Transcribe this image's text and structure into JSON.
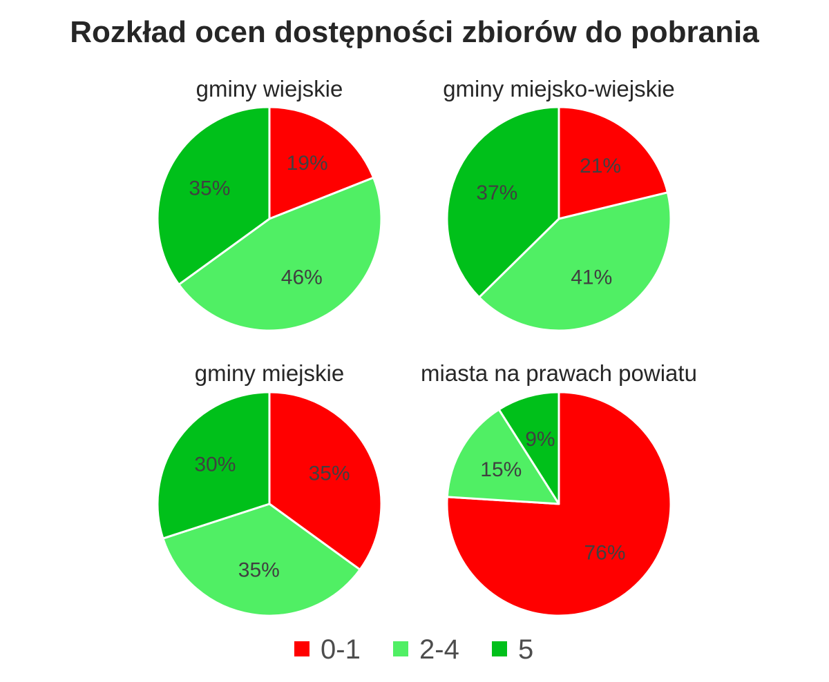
{
  "chart_data": {
    "type": "pie",
    "title": "Rozkład ocen dostępności zbiorów do pobrania",
    "categories": [
      "0-1",
      "2-4",
      "5"
    ],
    "colors": {
      "0-1": "#ff0000",
      "2-4": "#50ef64",
      "5": "#00c01a"
    },
    "legend_placement": "bottom",
    "pies": [
      {
        "title": "gminy wiejskie",
        "values": [
          19,
          46,
          35
        ],
        "labels": [
          "19%",
          "46%",
          "35%"
        ]
      },
      {
        "title": "gminy miejsko-wiejskie",
        "values": [
          21,
          41,
          37
        ],
        "labels": [
          "21%",
          "41%",
          "37%"
        ]
      },
      {
        "title": "gminy miejskie",
        "values": [
          35,
          35,
          30
        ],
        "labels": [
          "35%",
          "35%",
          "30%"
        ]
      },
      {
        "title": "miasta na prawach powiatu",
        "values": [
          76,
          15,
          9
        ],
        "labels": [
          "76%",
          "15%",
          "9%"
        ]
      }
    ]
  }
}
